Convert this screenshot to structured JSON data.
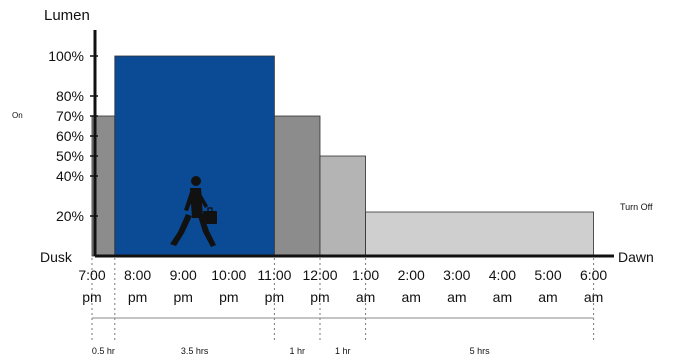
{
  "chart_data": {
    "type": "area",
    "title": "",
    "ylabel": "Lumen",
    "y_ticks": [
      {
        "value": 100,
        "label": "100%"
      },
      {
        "value": 80,
        "label": "80%"
      },
      {
        "value": 70,
        "label": "70%"
      },
      {
        "value": 60,
        "label": "60%"
      },
      {
        "value": 50,
        "label": "50%"
      },
      {
        "value": 40,
        "label": "40%"
      },
      {
        "value": 20,
        "label": "20%"
      }
    ],
    "y_origin_label": "Dusk",
    "x_end_label": "Dawn",
    "ylim": [
      0,
      100
    ],
    "x_ticks": [
      {
        "hours": 0,
        "time": "7:00",
        "ampm": "pm"
      },
      {
        "hours": 1,
        "time": "8:00",
        "ampm": "pm"
      },
      {
        "hours": 2,
        "time": "9:00",
        "ampm": "pm"
      },
      {
        "hours": 3,
        "time": "10:00",
        "ampm": "pm"
      },
      {
        "hours": 4,
        "time": "11:00",
        "ampm": "pm"
      },
      {
        "hours": 5,
        "time": "12:00",
        "ampm": "pm"
      },
      {
        "hours": 6,
        "time": "1:00",
        "ampm": "am"
      },
      {
        "hours": 7,
        "time": "2:00",
        "ampm": "am"
      },
      {
        "hours": 8,
        "time": "3:00",
        "ampm": "am"
      },
      {
        "hours": 9,
        "time": "4:00",
        "ampm": "am"
      },
      {
        "hours": 10,
        "time": "5:00",
        "ampm": "am"
      },
      {
        "hours": 11,
        "time": "6:00",
        "ampm": "am"
      }
    ],
    "segments": [
      {
        "start": 0,
        "end": 0.5,
        "value": 70,
        "color": "#8c8c8c",
        "duration_label": "0.5 hr"
      },
      {
        "start": 0.5,
        "end": 4,
        "value": 100,
        "color": "#0b4a94",
        "duration_label": "3.5 hrs"
      },
      {
        "start": 4,
        "end": 5,
        "value": 70,
        "color": "#8c8c8c",
        "duration_label": "1 hr"
      },
      {
        "start": 5,
        "end": 6,
        "value": 50,
        "color": "#b4b4b4",
        "duration_label": "1 hr"
      },
      {
        "start": 6,
        "end": 11,
        "value": 22,
        "color": "#cfcfcf",
        "duration_label": "5 hrs"
      }
    ],
    "annotations": {
      "on": "On",
      "turn_off": "Turn Off"
    }
  }
}
